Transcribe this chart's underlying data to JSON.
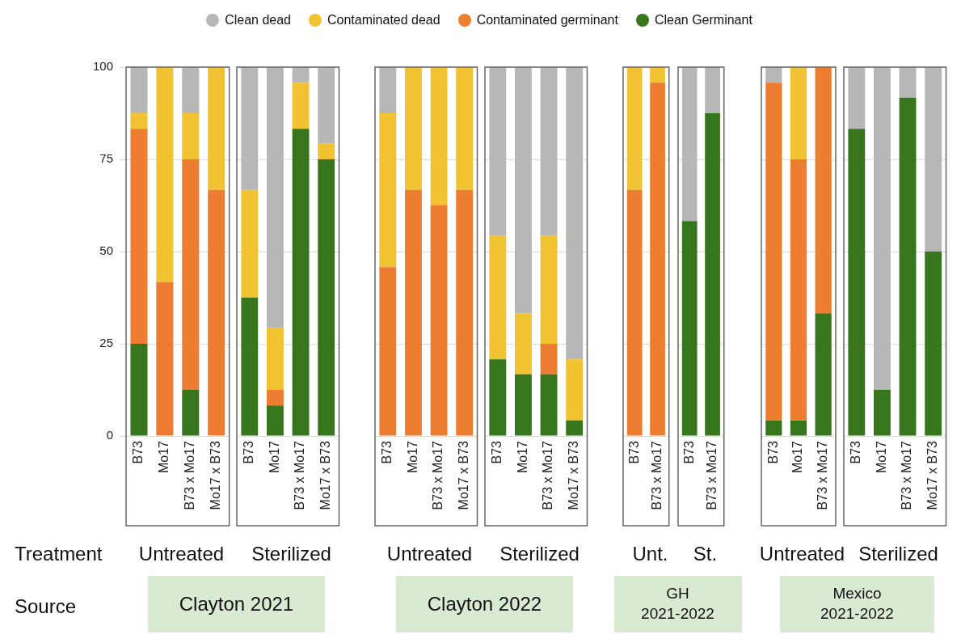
{
  "chart_data": [
    {
      "type": "bar",
      "stacked": true,
      "grid": "y",
      "legend": "top",
      "ylim": [
        0,
        100
      ],
      "yticks": [
        0,
        25,
        50,
        75,
        100
      ],
      "categories": [
        "B73",
        "Mo17",
        "B73 x Mo17",
        "Mo17 x B73"
      ],
      "annotations": [
        "Untreated",
        "Clayton 2021",
        "Treatment",
        "Source"
      ],
      "series": [
        {
          "name": "Clean Germinant",
          "color": "#38761d",
          "values": [
            25,
            0,
            12.5,
            0
          ]
        },
        {
          "name": "Contaminated germinant",
          "color": "#ed7d31",
          "values": [
            58.3,
            41.7,
            62.5,
            66.7
          ]
        },
        {
          "name": "Contaminated dead",
          "color": "#f1c232",
          "values": [
            4.2,
            58.3,
            12.5,
            33.3
          ]
        },
        {
          "name": "Clean dead",
          "color": "#b7b7b7",
          "values": [
            12.5,
            0,
            12.5,
            0
          ]
        }
      ]
    },
    {
      "type": "bar",
      "stacked": true,
      "grid": "y",
      "tick_labels": "x",
      "ylim": [
        0,
        100
      ],
      "yticks": [
        0,
        25,
        50,
        75,
        100
      ],
      "categories": [
        "B73",
        "Mo17",
        "B73 x Mo17",
        "Mo17 x B73"
      ],
      "annotations": [
        "Sterilized"
      ],
      "series": [
        {
          "color": "#38761d",
          "values": [
            37.5,
            8.3,
            83.3,
            75
          ]
        },
        {
          "color": "#ed7d31",
          "values": [
            0,
            4.2,
            0,
            0
          ]
        },
        {
          "color": "#f1c232",
          "values": [
            29.2,
            16.7,
            12.5,
            4.2
          ]
        },
        {
          "color": "#b7b7b7",
          "values": [
            33.3,
            70.8,
            4.2,
            20.8
          ]
        }
      ]
    },
    {
      "type": "bar",
      "stacked": true,
      "grid": "y",
      "tick_labels": "x",
      "ylim": [
        0,
        100
      ],
      "yticks": [
        0,
        25,
        50,
        75,
        100
      ],
      "categories": [
        "B73",
        "Mo17",
        "B73 x Mo17",
        "Mo17 x B73"
      ],
      "annotations": [
        "Untreated",
        "Clayton 2022"
      ],
      "series": [
        {
          "color": "#38761d",
          "values": [
            0,
            0,
            0,
            0
          ]
        },
        {
          "color": "#ed7d31",
          "values": [
            45.8,
            66.7,
            62.5,
            66.7
          ]
        },
        {
          "color": "#f1c232",
          "values": [
            41.7,
            33.3,
            37.5,
            33.3
          ]
        },
        {
          "color": "#b7b7b7",
          "values": [
            12.5,
            0,
            0,
            0
          ]
        }
      ]
    },
    {
      "type": "bar",
      "stacked": true,
      "grid": "y",
      "tick_labels": "x",
      "ylim": [
        0,
        100
      ],
      "yticks": [
        0,
        25,
        50,
        75,
        100
      ],
      "categories": [
        "B73",
        "Mo17",
        "B73 x Mo17",
        "Mo17 x B73"
      ],
      "annotations": [
        "Sterilized"
      ],
      "series": [
        {
          "color": "#38761d",
          "values": [
            20.8,
            16.7,
            16.7,
            4.2
          ]
        },
        {
          "color": "#ed7d31",
          "values": [
            0,
            0,
            8.3,
            0
          ]
        },
        {
          "color": "#f1c232",
          "values": [
            33.4,
            16.6,
            29.2,
            16.6
          ]
        },
        {
          "color": "#b7b7b7",
          "values": [
            45.8,
            66.7,
            45.8,
            79.2
          ]
        }
      ]
    },
    {
      "type": "bar",
      "stacked": true,
      "grid": "y",
      "tick_labels": "x",
      "ylim": [
        0,
        100
      ],
      "yticks": [
        0,
        25,
        50,
        75,
        100
      ],
      "categories": [
        "B73",
        "B73 x Mo17"
      ],
      "annotations": [
        "Unt.",
        "GH\n2021-2022"
      ],
      "series": [
        {
          "color": "#38761d",
          "values": [
            0,
            0
          ]
        },
        {
          "color": "#ed7d31",
          "values": [
            66.7,
            95.8
          ]
        },
        {
          "color": "#f1c232",
          "values": [
            33.3,
            4.2
          ]
        },
        {
          "color": "#b7b7b7",
          "values": [
            0,
            0
          ]
        }
      ]
    },
    {
      "type": "bar",
      "stacked": true,
      "grid": "y",
      "tick_labels": "x",
      "ylim": [
        0,
        100
      ],
      "yticks": [
        0,
        25,
        50,
        75,
        100
      ],
      "categories": [
        "B73",
        "B73 x Mo17"
      ],
      "annotations": [
        "St."
      ],
      "series": [
        {
          "color": "#38761d",
          "values": [
            58.3,
            87.5
          ]
        },
        {
          "color": "#ed7d31",
          "values": [
            0,
            0
          ]
        },
        {
          "color": "#f1c232",
          "values": [
            0,
            0
          ]
        },
        {
          "color": "#b7b7b7",
          "values": [
            41.7,
            12.5
          ]
        }
      ]
    },
    {
      "type": "bar",
      "stacked": true,
      "grid": "y",
      "tick_labels": "x",
      "ylim": [
        0,
        100
      ],
      "yticks": [
        0,
        25,
        50,
        75,
        100
      ],
      "categories": [
        "B73",
        "Mo17",
        "B73 x Mo17"
      ],
      "annotations": [
        "Untreated",
        "Mexico\n2021-2022"
      ],
      "series": [
        {
          "color": "#38761d",
          "values": [
            4.2,
            4.2,
            33.3
          ]
        },
        {
          "color": "#ed7d31",
          "values": [
            91.6,
            70.8,
            66.7
          ]
        },
        {
          "color": "#f1c232",
          "values": [
            0,
            25,
            0
          ]
        },
        {
          "color": "#b7b7b7",
          "values": [
            4.2,
            0,
            0
          ]
        }
      ]
    },
    {
      "type": "bar",
      "stacked": true,
      "grid": "y",
      "tick_labels": "x",
      "ylim": [
        0,
        100
      ],
      "yticks": [
        0,
        25,
        50,
        75,
        100
      ],
      "categories": [
        "B73",
        "Mo17",
        "B73 x Mo17",
        "Mo17 x B73"
      ],
      "annotations": [
        "Sterilized"
      ],
      "series": [
        {
          "color": "#38761d",
          "values": [
            83.3,
            12.5,
            91.7,
            50
          ]
        },
        {
          "color": "#ed7d31",
          "values": [
            0,
            0,
            0,
            0
          ]
        },
        {
          "color": "#f1c232",
          "values": [
            0,
            0,
            0,
            0
          ]
        },
        {
          "color": "#b7b7b7",
          "values": [
            16.7,
            87.5,
            8.3,
            50
          ]
        }
      ]
    }
  ]
}
